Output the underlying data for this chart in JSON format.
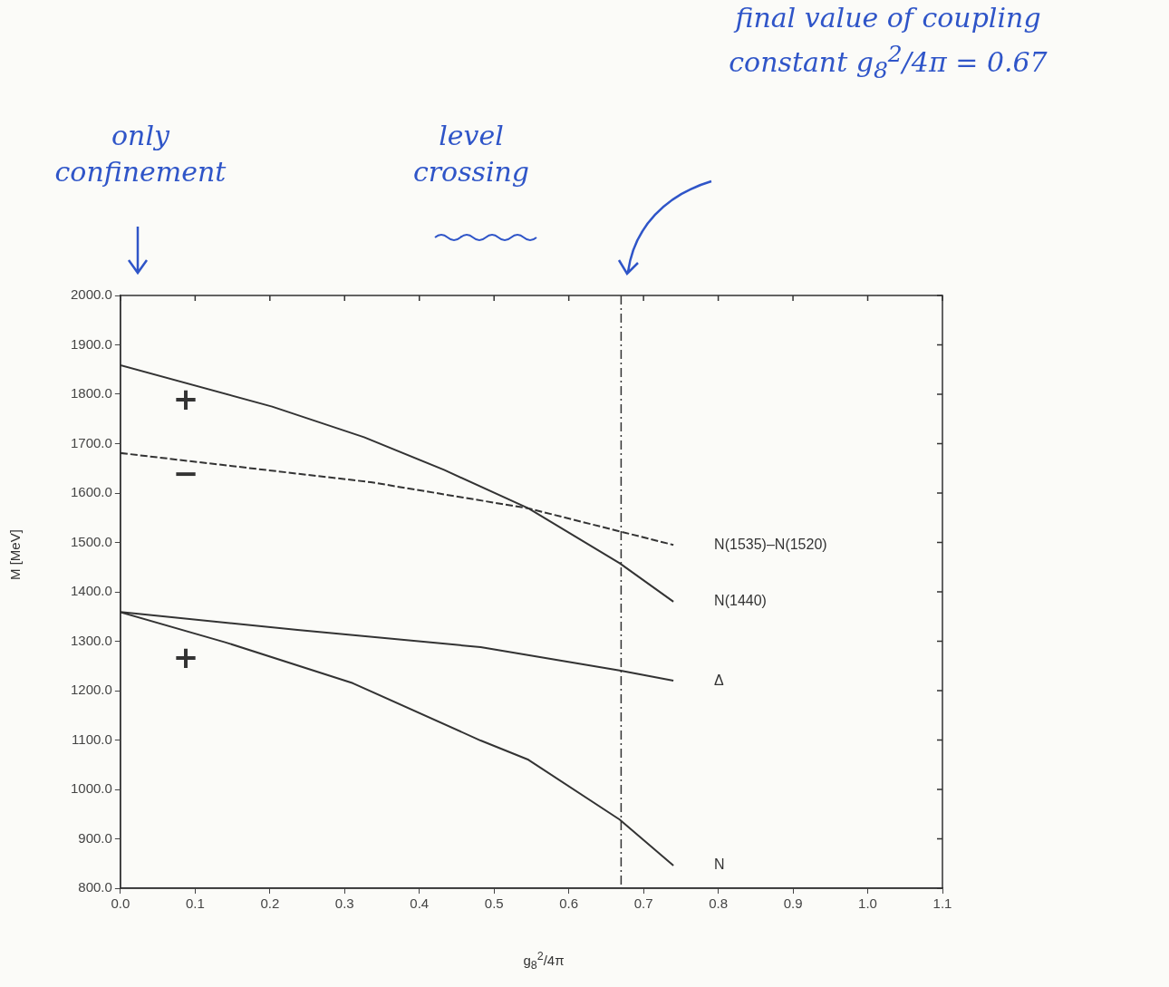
{
  "chart_data": {
    "type": "line",
    "xlabel": "g$_{8}$$^{2}$/4π",
    "ylabel": "M [MeV]",
    "series": [
      {
        "name": "N(1535)–N(1520)",
        "color": "#333333",
        "line_style": "dashed",
        "x": [
          0,
          0.335,
          0.546,
          0.74
        ],
        "values": [
          1681,
          1622,
          1569,
          1495
        ]
      },
      {
        "name": "N(1440)",
        "color": "#333333",
        "x": [
          0,
          0.203,
          0.326,
          0.433,
          0.546,
          0.668,
          0.74
        ],
        "values": [
          1859,
          1775,
          1713,
          1647,
          1569,
          1458,
          1380
        ]
      },
      {
        "name": "Δ",
        "color": "#333333",
        "x": [
          0,
          0.237,
          0.482,
          0.668,
          0.74
        ],
        "values": [
          1359,
          1323,
          1288,
          1241,
          1220
        ]
      },
      {
        "name": "N",
        "color": "#333333",
        "x": [
          0,
          0.14,
          0.311,
          0.482,
          0.546,
          0.668,
          0.74
        ],
        "values": [
          1359,
          1298,
          1215,
          1099,
          1060,
          939,
          846
        ]
      }
    ],
    "xlim": [
      0,
      1.1
    ],
    "xticks": [
      {
        "value": 0,
        "label": "0.0"
      },
      0.1,
      0.2,
      0.3,
      0.4,
      0.5,
      0.6,
      0.7,
      0.8,
      0.9,
      {
        "value": 1,
        "label": "1.0"
      },
      1.1
    ],
    "ylim": [
      800,
      2000
    ],
    "yticks": [
      {
        "value": 800,
        "label": "800.0"
      },
      {
        "value": 900,
        "label": "900.0"
      },
      {
        "value": 1000,
        "label": "1000.0"
      },
      {
        "value": 1100,
        "label": "1100.0"
      },
      {
        "value": 1200,
        "label": "1200.0"
      },
      {
        "value": 1300,
        "label": "1300.0"
      },
      {
        "value": 1400,
        "label": "1400.0"
      },
      {
        "value": 1500,
        "label": "1500.0"
      },
      {
        "value": 1600,
        "label": "1600.0"
      },
      {
        "value": 1700,
        "label": "1700.0"
      },
      {
        "value": 1800,
        "label": "1800.0"
      },
      {
        "value": 1900,
        "label": "1900.0"
      },
      {
        "value": 2000,
        "label": "2000.0"
      }
    ],
    "ref_lines": [
      {
        "axis": "x",
        "value": 0.67,
        "color": "#333333",
        "line_style": "dashed"
      }
    ],
    "annotations": [
      "only confinement",
      "level crossing",
      "final value of coupling constant g$_{8}$$^{2}$/4π = 0.67",
      "+",
      "−",
      "+"
    ],
    "grid": false,
    "legend": false,
    "marker": "none"
  }
}
